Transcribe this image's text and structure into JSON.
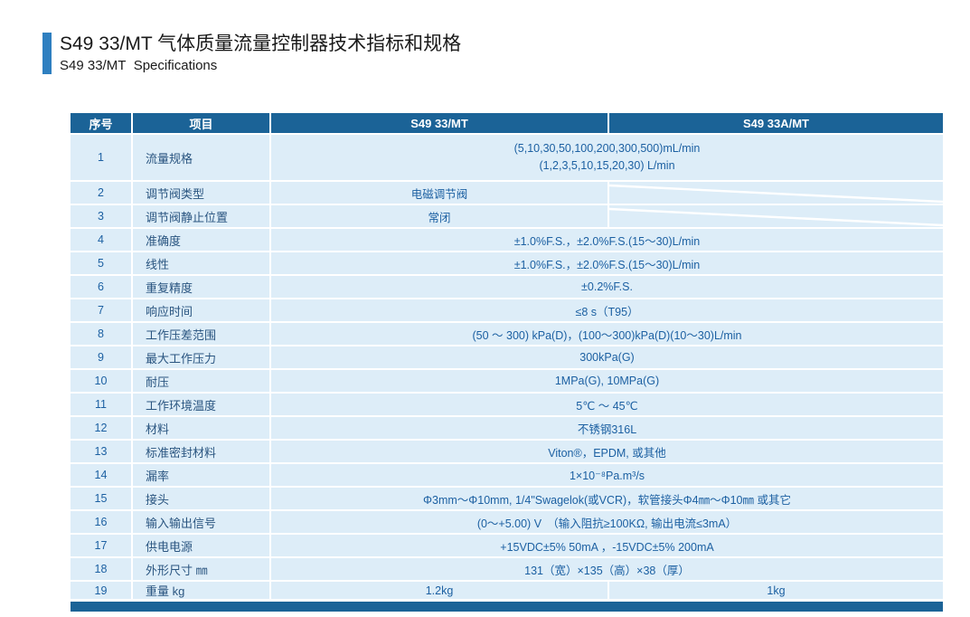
{
  "header": {
    "title": "S49 33/MT 气体质量流量控制器技术指标和规格",
    "subtitle": "S49 33/MT  Specifications"
  },
  "table": {
    "headers": {
      "no": "序号",
      "item": "项目",
      "model1": "S49 33/MT",
      "model2": "S49 33A/MT"
    },
    "rows": [
      {
        "no": "1",
        "item": "流量规格",
        "type": "span",
        "lines": [
          "(5,10,30,50,100,200,300,500)mL/min",
          "(1,2,3,5,10,15,20,30) L/min"
        ]
      },
      {
        "no": "2",
        "item": "调节阀类型",
        "type": "na_right",
        "value": "电磁调节阀"
      },
      {
        "no": "3",
        "item": "调节阀静止位置",
        "type": "na_right",
        "value": "常闭"
      },
      {
        "no": "4",
        "item": "准确度",
        "type": "span",
        "value": "±1.0%F.S.，±2.0%F.S.(15～30)L/min"
      },
      {
        "no": "5",
        "item": "线性",
        "type": "span",
        "value": "±1.0%F.S.，±2.0%F.S.(15～30)L/min"
      },
      {
        "no": "6",
        "item": "重复精度",
        "type": "span",
        "value": "±0.2%F.S."
      },
      {
        "no": "7",
        "item": "响应时间",
        "type": "span",
        "value": "≤8 s（T95）"
      },
      {
        "no": "8",
        "item": "工作压差范围",
        "type": "span",
        "value": "(50 ～ 300) kPa(D)，(100～300)kPa(D)(10～30)L/min"
      },
      {
        "no": "9",
        "item": "最大工作压力",
        "type": "span",
        "value": "300kPa(G)"
      },
      {
        "no": "10",
        "item": "耐压",
        "type": "span",
        "value": "1MPa(G), 10MPa(G)"
      },
      {
        "no": "11",
        "item": "工作环境温度",
        "type": "span",
        "value": "5℃ ～ 45℃"
      },
      {
        "no": "12",
        "item": "材料",
        "type": "span",
        "value": "不锈钢316L"
      },
      {
        "no": "13",
        "item": "标准密封材料",
        "type": "span",
        "value": "Viton®，EPDM, 或其他"
      },
      {
        "no": "14",
        "item": "漏率",
        "type": "span",
        "value": "1×10⁻⁸Pa.m³/s"
      },
      {
        "no": "15",
        "item": "接头",
        "type": "span",
        "value": "Φ3mm～Φ10mm, 1/4\"Swagelok(或VCR)，软管接头Φ4㎜～Φ10㎜ 或其它"
      },
      {
        "no": "16",
        "item": "输入输出信号",
        "type": "span",
        "value": "(0～+5.00) V　（输入阻抗≥100KΩ, 输出电流≤3mA）"
      },
      {
        "no": "17",
        "item": "供电电源",
        "type": "span",
        "value": "+15VDC±5% 50mA ，-15VDC±5% 200mA"
      },
      {
        "no": "18",
        "item": "外形尺寸 ㎜",
        "type": "span",
        "value": "131（宽）×135（高）×38（厚）"
      },
      {
        "no": "19",
        "item": "重量 kg",
        "type": "split",
        "value1": "1.2kg",
        "value2": "1kg"
      }
    ]
  },
  "colors": {
    "header_blue": "#1b6397",
    "accent_blue": "#2e7fc0",
    "row_background": "#ddedf8",
    "value_text": "#1c60a2",
    "item_text": "#2a5580"
  }
}
